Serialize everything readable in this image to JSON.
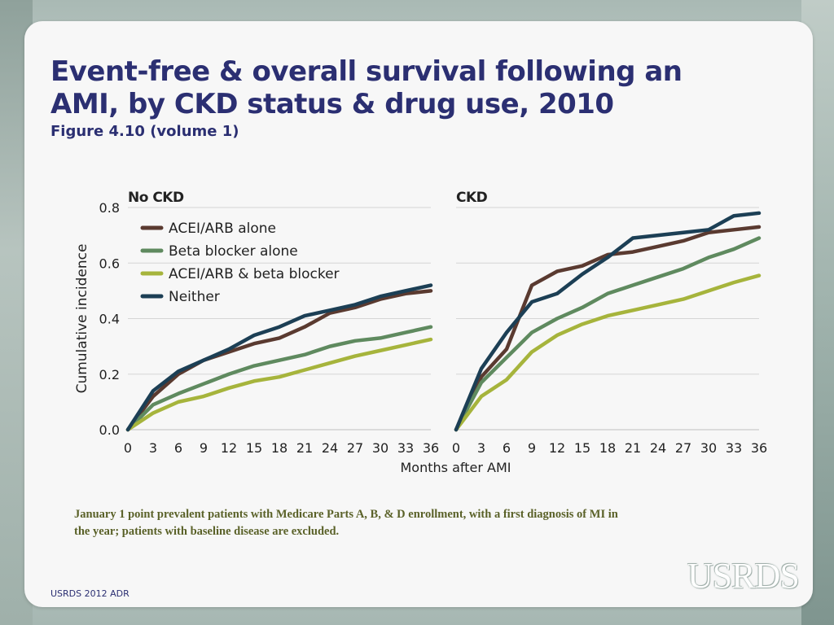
{
  "slide": {
    "title": "Event-free & overall survival  following an AMI, by CKD status & drug use, 2010",
    "subtitle": "Figure 4.10 (volume 1)",
    "footnote": "January 1 point prevalent patients with Medicare Parts A, B, & D enrollment, with a first diagnosis of MI in the year; patients with baseline disease are excluded.",
    "source": "USRDS 2012 ADR",
    "logo_text": "USRDS"
  },
  "chart_data": {
    "type": "line",
    "ylabel": "Cumulative incidence",
    "xlabel": "Months after AMI",
    "ylim": [
      0,
      0.8
    ],
    "yticks": [
      "0.0",
      "0.2",
      "0.4",
      "0.6",
      "0.8"
    ],
    "xticks": [
      "0",
      "3",
      "6",
      "9",
      "12",
      "15",
      "18",
      "21",
      "24",
      "27",
      "30",
      "33",
      "36"
    ],
    "x": [
      0,
      3,
      6,
      9,
      12,
      15,
      18,
      21,
      24,
      27,
      30,
      33,
      36
    ],
    "colors": {
      "ACEI/ARB alone": "#5a3a30",
      "Beta blocker alone": "#5f8a5f",
      "ACEI/ARB & beta blocker": "#a6b43c",
      "Neither": "#1c3f55"
    },
    "panels": [
      {
        "title": "No CKD",
        "series": [
          {
            "name": "ACEI/ARB alone",
            "values": [
              0,
              0.12,
              0.2,
              0.25,
              0.28,
              0.31,
              0.33,
              0.37,
              0.42,
              0.44,
              0.47,
              0.49,
              0.5
            ]
          },
          {
            "name": "Beta blocker alone",
            "values": [
              0,
              0.09,
              0.13,
              0.165,
              0.2,
              0.23,
              0.25,
              0.27,
              0.3,
              0.32,
              0.33,
              0.35,
              0.37
            ]
          },
          {
            "name": "ACEI/ARB & beta blocker",
            "values": [
              0,
              0.06,
              0.1,
              0.12,
              0.15,
              0.175,
              0.19,
              0.215,
              0.24,
              0.265,
              0.285,
              0.305,
              0.325
            ]
          },
          {
            "name": "Neither",
            "values": [
              0,
              0.14,
              0.21,
              0.25,
              0.29,
              0.34,
              0.37,
              0.41,
              0.43,
              0.45,
              0.48,
              0.5,
              0.52
            ]
          }
        ]
      },
      {
        "title": "CKD",
        "series": [
          {
            "name": "ACEI/ARB alone",
            "values": [
              0,
              0.19,
              0.29,
              0.52,
              0.57,
              0.59,
              0.63,
              0.64,
              0.66,
              0.68,
              0.71,
              0.72,
              0.73
            ]
          },
          {
            "name": "Beta blocker alone",
            "values": [
              0,
              0.17,
              0.26,
              0.35,
              0.4,
              0.44,
              0.49,
              0.52,
              0.55,
              0.58,
              0.62,
              0.65,
              0.69
            ]
          },
          {
            "name": "ACEI/ARB & beta blocker",
            "values": [
              0,
              0.12,
              0.18,
              0.28,
              0.34,
              0.38,
              0.41,
              0.43,
              0.45,
              0.47,
              0.5,
              0.53,
              0.555
            ]
          },
          {
            "name": "Neither",
            "values": [
              0,
              0.22,
              0.35,
              0.46,
              0.49,
              0.56,
              0.62,
              0.69,
              0.7,
              0.71,
              0.72,
              0.77,
              0.78
            ]
          }
        ]
      }
    ],
    "legend": [
      "ACEI/ARB alone",
      "Beta blocker alone",
      "ACEI/ARB & beta blocker",
      "Neither"
    ],
    "legend_placement": "top-left of first panel"
  }
}
